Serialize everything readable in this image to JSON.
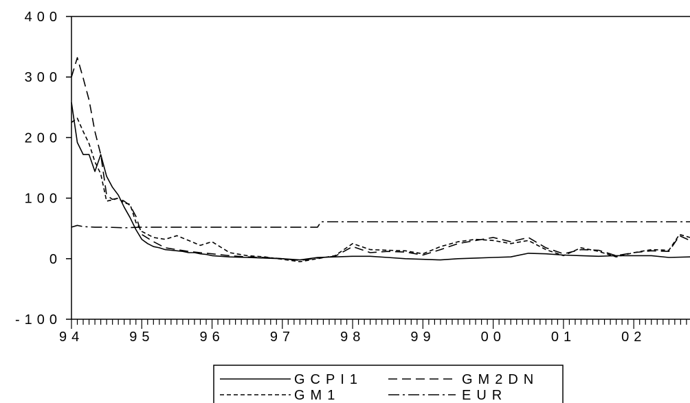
{
  "chart_data": {
    "type": "line",
    "title": "",
    "xlabel": "",
    "ylabel": "",
    "x_tick_labels": [
      "94",
      "95",
      "96",
      "97",
      "98",
      "99",
      "00",
      "01",
      "02"
    ],
    "y_tick_labels": [
      "400",
      "300",
      "200",
      "100",
      "0",
      "-100"
    ],
    "ylim": [
      -100,
      400
    ],
    "xlim": [
      1994.0,
      2002.8
    ],
    "legend_position": "bottom-center",
    "grid": false,
    "series": [
      {
        "name": "GCPI1",
        "color": "#000000",
        "dash": "solid",
        "x": [
          1994.0,
          1994.083,
          1994.167,
          1994.25,
          1994.333,
          1994.417,
          1994.5,
          1994.583,
          1994.667,
          1994.75,
          1994.833,
          1994.917,
          1995.0,
          1995.083,
          1995.167,
          1995.25,
          1995.333,
          1995.417,
          1995.5,
          1995.583,
          1995.667,
          1995.75,
          1995.833,
          1995.917,
          1996.0,
          1996.25,
          1996.5,
          1996.75,
          1997.0,
          1997.25,
          1997.5,
          1997.75,
          1998.0,
          1998.25,
          1998.5,
          1998.75,
          1999.0,
          1999.25,
          1999.5,
          1999.75,
          2000.0,
          2000.25,
          2000.5,
          2000.75,
          2001.0,
          2001.25,
          2001.5,
          2001.75,
          2002.0,
          2002.25,
          2002.5,
          2002.8
        ],
        "values": [
          258,
          192,
          172,
          172,
          144,
          172,
          136,
          118,
          105,
          85,
          68,
          48,
          32,
          25,
          20,
          18,
          15,
          14,
          13,
          12,
          10,
          10,
          8,
          7,
          5,
          3,
          2,
          1,
          0,
          -2,
          2,
          3,
          4,
          4,
          2,
          0,
          -1,
          -2,
          0,
          1,
          2,
          3,
          9,
          8,
          6,
          5,
          4,
          5,
          5,
          5,
          2,
          3
        ]
      },
      {
        "name": "GM2DN",
        "color": "#000000",
        "dash": "long-dash",
        "x": [
          1994.0,
          1994.083,
          1994.167,
          1994.25,
          1994.333,
          1994.417,
          1994.5,
          1994.583,
          1994.667,
          1994.75,
          1994.833,
          1994.917,
          1995.0,
          1995.167,
          1995.333,
          1995.5,
          1995.667,
          1995.833,
          1996.0,
          1996.25,
          1996.5,
          1996.75,
          1997.0,
          1997.25,
          1997.5,
          1997.75,
          1998.0,
          1998.25,
          1998.5,
          1998.75,
          1999.0,
          1999.25,
          1999.5,
          1999.75,
          2000.0,
          2000.25,
          2000.5,
          2000.75,
          2001.0,
          2001.25,
          2001.5,
          2001.75,
          2002.0,
          2002.25,
          2002.5,
          2002.65,
          2002.8
        ],
        "values": [
          300,
          332,
          298,
          262,
          210,
          172,
          105,
          98,
          100,
          95,
          88,
          70,
          40,
          28,
          18,
          15,
          12,
          10,
          8,
          5,
          3,
          2,
          0,
          -3,
          1,
          4,
          20,
          10,
          12,
          11,
          6,
          15,
          25,
          30,
          35,
          28,
          35,
          18,
          8,
          15,
          14,
          5,
          10,
          13,
          12,
          38,
          30
        ]
      },
      {
        "name": "GM1",
        "color": "#000000",
        "dash": "short-dash",
        "x": [
          1994.0,
          1994.083,
          1994.167,
          1994.25,
          1994.333,
          1994.417,
          1994.5,
          1994.583,
          1994.667,
          1994.75,
          1994.833,
          1994.917,
          1995.0,
          1995.167,
          1995.333,
          1995.5,
          1995.667,
          1995.833,
          1996.0,
          1996.25,
          1996.5,
          1996.75,
          1997.0,
          1997.25,
          1997.5,
          1997.75,
          1998.0,
          1998.25,
          1998.5,
          1998.75,
          1999.0,
          1999.25,
          1999.5,
          1999.75,
          2000.0,
          2000.25,
          2000.5,
          2000.75,
          2001.0,
          2001.25,
          2001.5,
          2001.75,
          2002.0,
          2002.25,
          2002.5,
          2002.65,
          2002.8
        ],
        "values": [
          225,
          232,
          210,
          190,
          160,
          140,
          95,
          97,
          100,
          92,
          90,
          60,
          45,
          35,
          32,
          38,
          30,
          22,
          28,
          10,
          5,
          3,
          -1,
          -5,
          0,
          5,
          25,
          15,
          14,
          13,
          8,
          20,
          28,
          32,
          30,
          25,
          30,
          15,
          5,
          18,
          12,
          3,
          10,
          15,
          14,
          40,
          35
        ]
      },
      {
        "name": "EUR",
        "color": "#000000",
        "dash": "dash-dot",
        "x": [
          1994.0,
          1994.083,
          1994.167,
          1994.333,
          1994.5,
          1994.75,
          1995.0,
          1995.5,
          1996.0,
          1996.5,
          1997.0,
          1997.5,
          1997.55,
          1998.0,
          1999.0,
          2000.0,
          2001.0,
          2002.0,
          2002.8
        ],
        "values": [
          52,
          55,
          53,
          52,
          52,
          51,
          52,
          52,
          52,
          52,
          52,
          52,
          61,
          61,
          61,
          61,
          61,
          61,
          61
        ]
      }
    ]
  }
}
